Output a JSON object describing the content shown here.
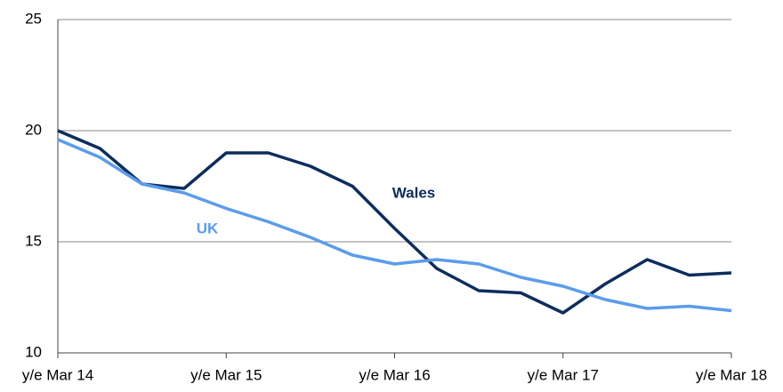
{
  "chart_data": {
    "type": "line",
    "categories": [
      "y/e Mar 14",
      null,
      null,
      null,
      "y/e Mar 15",
      null,
      null,
      null,
      "y/e Mar 16",
      null,
      null,
      null,
      "y/e Mar 17",
      null,
      null,
      null,
      "y/e Mar 18"
    ],
    "series": [
      {
        "name": "Wales",
        "color": "#0d2d5e",
        "values": [
          20.0,
          19.2,
          17.6,
          17.4,
          19.0,
          19.0,
          18.4,
          17.5,
          15.6,
          13.8,
          12.8,
          12.7,
          11.8,
          13.1,
          14.2,
          13.5,
          13.6
        ]
      },
      {
        "name": "UK",
        "color": "#5b9cec",
        "values": [
          19.6,
          18.8,
          17.6,
          17.2,
          16.5,
          15.9,
          15.2,
          14.4,
          14.0,
          14.2,
          14.0,
          13.4,
          13.0,
          12.4,
          12.0,
          12.1,
          11.9
        ]
      }
    ],
    "ylim": [
      10,
      25
    ],
    "yticks": [
      10,
      15,
      20,
      25
    ],
    "grid": true
  }
}
